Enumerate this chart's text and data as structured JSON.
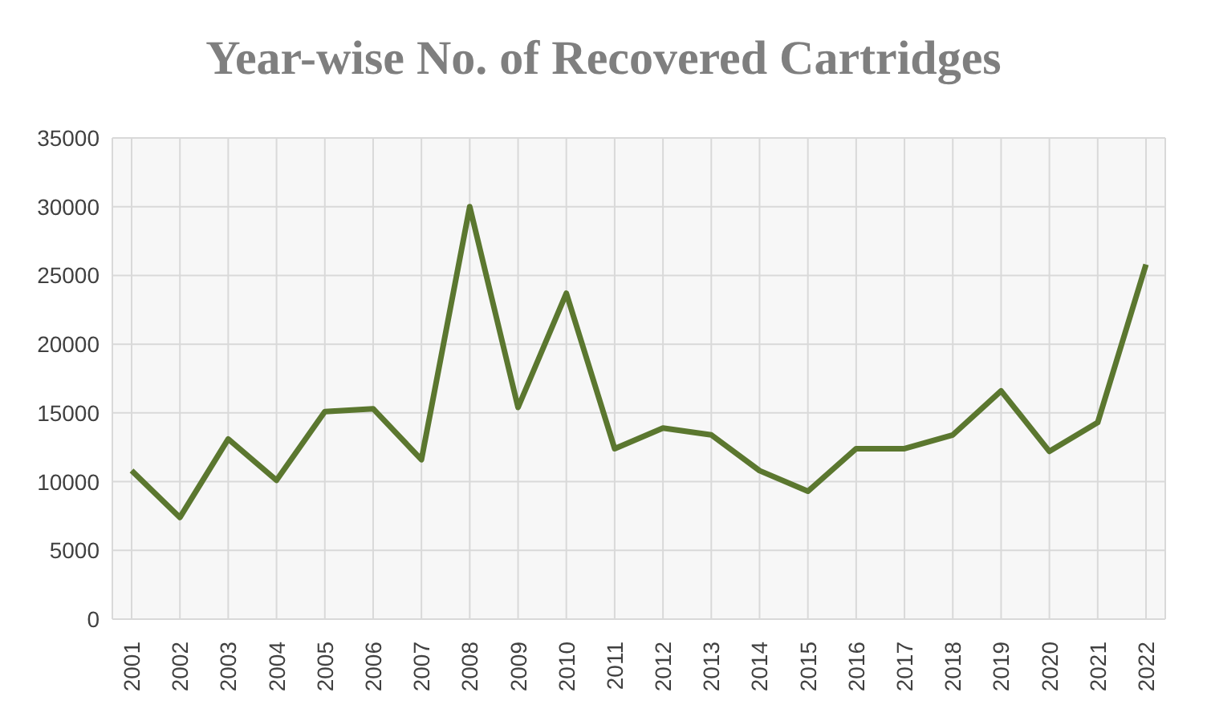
{
  "chart_data": {
    "type": "line",
    "title": "Year-wise No. of Recovered Cartridges",
    "categories": [
      "2001",
      "2002",
      "2003",
      "2004",
      "2005",
      "2006",
      "2007",
      "2008",
      "2009",
      "2010",
      "2011",
      "2012",
      "2013",
      "2014",
      "2015",
      "2016",
      "2017",
      "2018",
      "2019",
      "2020",
      "2021",
      "2022"
    ],
    "series": [
      {
        "color": "#5b772f",
        "values": [
          10800,
          7400,
          13100,
          10100,
          15100,
          15300,
          11600,
          30000,
          15400,
          23700,
          12400,
          13900,
          13400,
          10800,
          9300,
          12400,
          12400,
          13400,
          16600,
          12200,
          14300,
          25800
        ]
      }
    ],
    "ylim": [
      0,
      35000
    ],
    "yticks": [
      0,
      5000,
      10000,
      15000,
      20000,
      25000,
      30000,
      35000
    ],
    "grid": true,
    "legend": false,
    "marker": "none",
    "line_style": "solid"
  }
}
